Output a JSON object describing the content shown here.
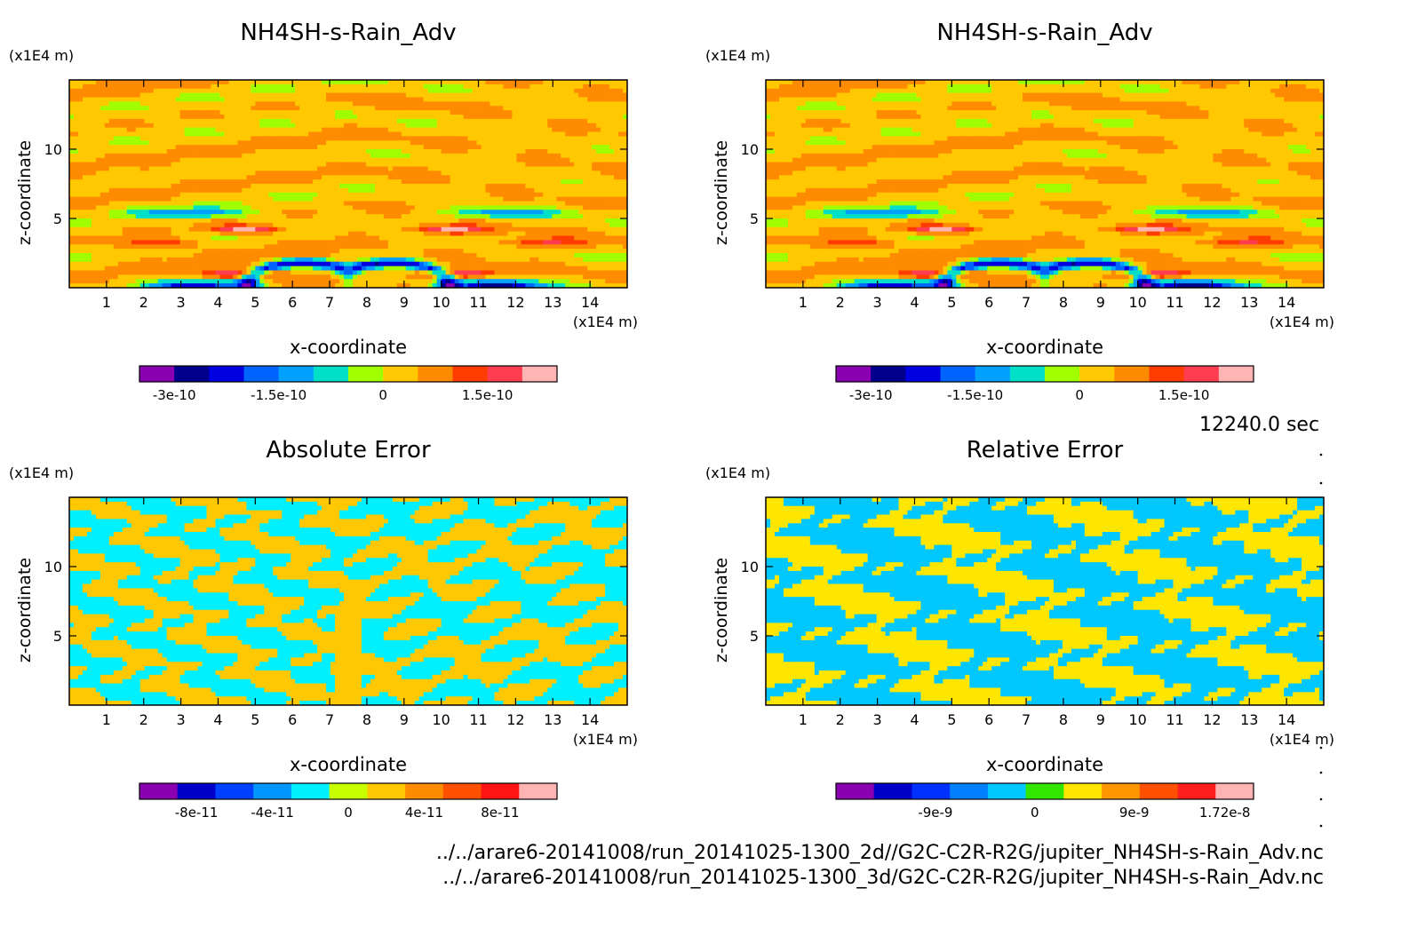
{
  "time_label": "12240.0 sec",
  "footer": {
    "line1": "../../arare6-20141008/run_20141025-1300_2d//G2C-C2R-R2G/jupiter_NH4SH-s-Rain_Adv.nc",
    "line2": "../../arare6-20141008/run_20141025-1300_3d/G2C-C2R-R2G/jupiter_NH4SH-s-Rain_Adv.nc"
  },
  "chart_data": [
    {
      "type": "heatmap",
      "title": "NH4SH-s-Rain_Adv",
      "xlabel": "x-coordinate",
      "ylabel": "z-coordinate",
      "x_unit": "(x1E4 m)",
      "y_unit": "(x1E4 m)",
      "x_ticks": [
        "1",
        "2",
        "3",
        "4",
        "5",
        "6",
        "7",
        "8",
        "9",
        "10",
        "11",
        "12",
        "13",
        "14"
      ],
      "y_ticks": [
        "5",
        "10"
      ],
      "xlim": [
        0,
        15
      ],
      "ylim": [
        0,
        15
      ],
      "colorbar": {
        "colors": [
          "#8a00b0",
          "#00008c",
          "#0000e0",
          "#0064ff",
          "#00a0ff",
          "#00e0c8",
          "#a0ff00",
          "#ffc800",
          "#ff8c00",
          "#ff3c00",
          "#ff3c50",
          "#ffb4b4"
        ],
        "labels": [
          "-3e-10",
          "-1.5e-10",
          "0",
          "1.5e-10"
        ],
        "range": [
          -3.5e-10,
          2.5e-10
        ],
        "label_values": [
          -3e-10,
          -1.5e-10,
          0,
          1.5e-10
        ]
      },
      "field": "advection"
    },
    {
      "type": "heatmap",
      "title": "NH4SH-s-Rain_Adv",
      "xlabel": "x-coordinate",
      "ylabel": "z-coordinate",
      "x_unit": "(x1E4 m)",
      "y_unit": "(x1E4 m)",
      "x_ticks": [
        "1",
        "2",
        "3",
        "4",
        "5",
        "6",
        "7",
        "8",
        "9",
        "10",
        "11",
        "12",
        "13",
        "14"
      ],
      "y_ticks": [
        "5",
        "10"
      ],
      "xlim": [
        0,
        15
      ],
      "ylim": [
        0,
        15
      ],
      "colorbar": {
        "colors": [
          "#8a00b0",
          "#00008c",
          "#0000e0",
          "#0064ff",
          "#00a0ff",
          "#00e0c8",
          "#a0ff00",
          "#ffc800",
          "#ff8c00",
          "#ff3c00",
          "#ff3c50",
          "#ffb4b4"
        ],
        "labels": [
          "-3e-10",
          "-1.5e-10",
          "0",
          "1.5e-10"
        ],
        "range": [
          -3.5e-10,
          2.5e-10
        ],
        "label_values": [
          -3e-10,
          -1.5e-10,
          0,
          1.5e-10
        ]
      },
      "field": "advection"
    },
    {
      "type": "heatmap",
      "title": "Absolute Error",
      "xlabel": "x-coordinate",
      "ylabel": "z-coordinate",
      "x_unit": "(x1E4 m)",
      "y_unit": "(x1E4 m)",
      "x_ticks": [
        "1",
        "2",
        "3",
        "4",
        "5",
        "6",
        "7",
        "8",
        "9",
        "10",
        "11",
        "12",
        "13",
        "14"
      ],
      "y_ticks": [
        "5",
        "10"
      ],
      "xlim": [
        0,
        15
      ],
      "ylim": [
        0,
        15
      ],
      "colorbar": {
        "colors": [
          "#8a00b0",
          "#0000c8",
          "#0040ff",
          "#0096ff",
          "#00f0ff",
          "#c8ff00",
          "#ffc800",
          "#ff8c00",
          "#ff5000",
          "#ff1414",
          "#ffb4b4"
        ],
        "labels": [
          "-8e-11",
          "-4e-11",
          "0",
          "4e-11",
          "8e-11"
        ],
        "range": [
          -1.1e-10,
          1.1e-10
        ],
        "label_values": [
          -8e-11,
          -4e-11,
          0,
          4e-11,
          8e-11
        ]
      },
      "field": "abs_error",
      "dominant_colors": [
        "#00f0ff",
        "#c8ff00"
      ]
    },
    {
      "type": "heatmap",
      "title": "Relative Error",
      "xlabel": "x-coordinate",
      "ylabel": "z-coordinate",
      "x_unit": "(x1E4 m)",
      "y_unit": "(x1E4 m)",
      "x_ticks": [
        "1",
        "2",
        "3",
        "4",
        "5",
        "6",
        "7",
        "8",
        "9",
        "10",
        "11",
        "12",
        "13",
        "14"
      ],
      "y_ticks": [
        "5",
        "10"
      ],
      "xlim": [
        0,
        15
      ],
      "ylim": [
        0,
        15
      ],
      "colorbar": {
        "colors": [
          "#8a00b0",
          "#0000c8",
          "#0032ff",
          "#0080ff",
          "#00c8ff",
          "#32e600",
          "#ffe600",
          "#ff9600",
          "#ff5000",
          "#ff1e1e",
          "#ffb4b4"
        ],
        "labels": [
          "-9e-9",
          "0",
          "9e-9",
          "1.72e-8"
        ],
        "range": [
          -1.8e-08,
          1.98e-08
        ],
        "label_values": [
          -9e-09,
          0,
          9e-09,
          1.72e-08
        ]
      },
      "field": "rel_error",
      "dominant_colors": [
        "#00c8ff",
        "#32e600"
      ]
    }
  ]
}
